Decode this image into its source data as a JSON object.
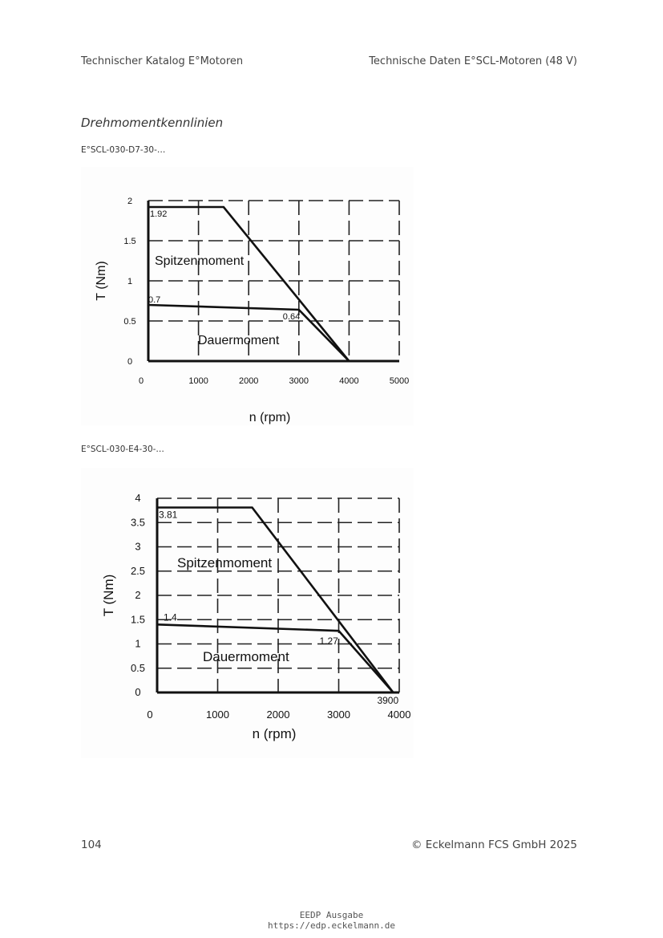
{
  "header": {
    "left": "Technischer Katalog E°Motoren",
    "right": "Technische Daten E°SCL-Motoren (48 V)"
  },
  "section_title": "Drehmomentkennlinien",
  "chart_data": [
    {
      "type": "line",
      "caption": "E°SCL-030-D7-30-…",
      "xlabel": "n (rpm)",
      "ylabel": "T (Nm)",
      "xlim": [
        0,
        5000
      ],
      "ylim": [
        0,
        2
      ],
      "xticks": [
        0,
        1000,
        2000,
        3000,
        4000,
        5000
      ],
      "yticks": [
        0,
        0.5,
        1,
        1.5,
        2
      ],
      "ytick_labels": [
        "0",
        "0.5",
        "1",
        "1.5",
        "2"
      ],
      "grid": true,
      "series": [
        {
          "name": "Spitzenmoment",
          "x": [
            0,
            1500,
            4000
          ],
          "y": [
            1.92,
            1.92,
            0
          ]
        },
        {
          "name": "Dauermoment",
          "x": [
            0,
            3000,
            4000
          ],
          "y": [
            0.7,
            0.64,
            0
          ]
        }
      ],
      "annotations": [
        {
          "text": "1.92",
          "x": 0,
          "y": 1.92
        },
        {
          "text": "0.7",
          "x": 0,
          "y": 0.7
        },
        {
          "text": "0.64",
          "x": 3000,
          "y": 0.64
        }
      ]
    },
    {
      "type": "line",
      "caption": "E°SCL-030-E4-30-…",
      "xlabel": "n (rpm)",
      "ylabel": "T (Nm)",
      "xlim": [
        0,
        4000
      ],
      "ylim": [
        0,
        4
      ],
      "xticks": [
        0,
        1000,
        2000,
        3000,
        4000
      ],
      "yticks": [
        0,
        0.5,
        1,
        1.5,
        2,
        2.5,
        3,
        3.5,
        4
      ],
      "ytick_labels": [
        "0",
        "0.5",
        "1",
        "1.5",
        "2",
        "2.5",
        "3",
        "3.5",
        "4"
      ],
      "grid": true,
      "series": [
        {
          "name": "Spitzenmoment",
          "x": [
            0,
            1570,
            3900
          ],
          "y": [
            3.81,
            3.81,
            0
          ]
        },
        {
          "name": "Dauermoment",
          "x": [
            0,
            3000,
            3900
          ],
          "y": [
            1.4,
            1.27,
            0
          ]
        }
      ],
      "annotations": [
        {
          "text": "3.81",
          "x": 0,
          "y": 3.81
        },
        {
          "text": "1.4",
          "x": 0,
          "y": 1.4
        },
        {
          "text": "1.27",
          "x": 3000,
          "y": 1.27
        },
        {
          "text": "3900",
          "x": 3900,
          "y": 0
        }
      ]
    }
  ],
  "footer": {
    "page_number": "104",
    "copyright": "© Eckelmann FCS GmbH 2025"
  },
  "stamp": {
    "line1": "EEDP Ausgabe",
    "line2": "https://edp.eckelmann.de"
  }
}
